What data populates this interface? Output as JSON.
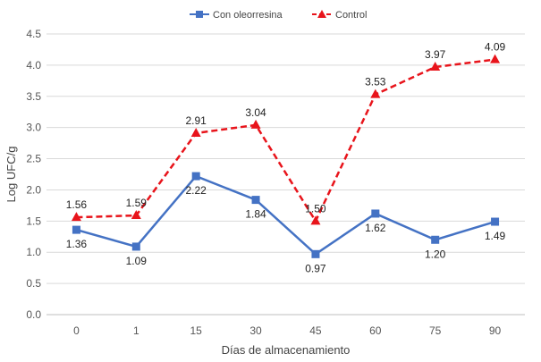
{
  "chart_data": {
    "type": "line",
    "title": "",
    "xlabel": "Días de almacenamiento",
    "ylabel": "Log UFC/g",
    "ylim": [
      0,
      4.5
    ],
    "y_ticks": [
      "0.0",
      "0.5",
      "1.0",
      "1.5",
      "2.0",
      "2.5",
      "3.0",
      "3.5",
      "4.0",
      "4.5"
    ],
    "categories": [
      "0",
      "1",
      "15",
      "30",
      "45",
      "60",
      "75",
      "90"
    ],
    "grid": true,
    "legend_position": "top-center",
    "series": [
      {
        "name": "Con oleorresina",
        "values": [
          1.36,
          1.09,
          2.22,
          1.84,
          0.97,
          1.62,
          1.2,
          1.49
        ],
        "labels": [
          "1.36",
          "1.09",
          "2.22",
          "1.84",
          "0.97",
          "1.62",
          "1.20",
          "1.49"
        ],
        "color": "#4472C4",
        "marker": "square",
        "line_style": "solid"
      },
      {
        "name": "Control",
        "values": [
          1.56,
          1.59,
          2.91,
          3.04,
          1.5,
          3.53,
          3.97,
          4.09
        ],
        "labels": [
          "1.56",
          "1.59",
          "2.91",
          "3.04",
          "1.50",
          "3.53",
          "3.97",
          "4.09"
        ],
        "color": "#E8141B",
        "marker": "triangle",
        "line_style": "dashed"
      }
    ]
  }
}
